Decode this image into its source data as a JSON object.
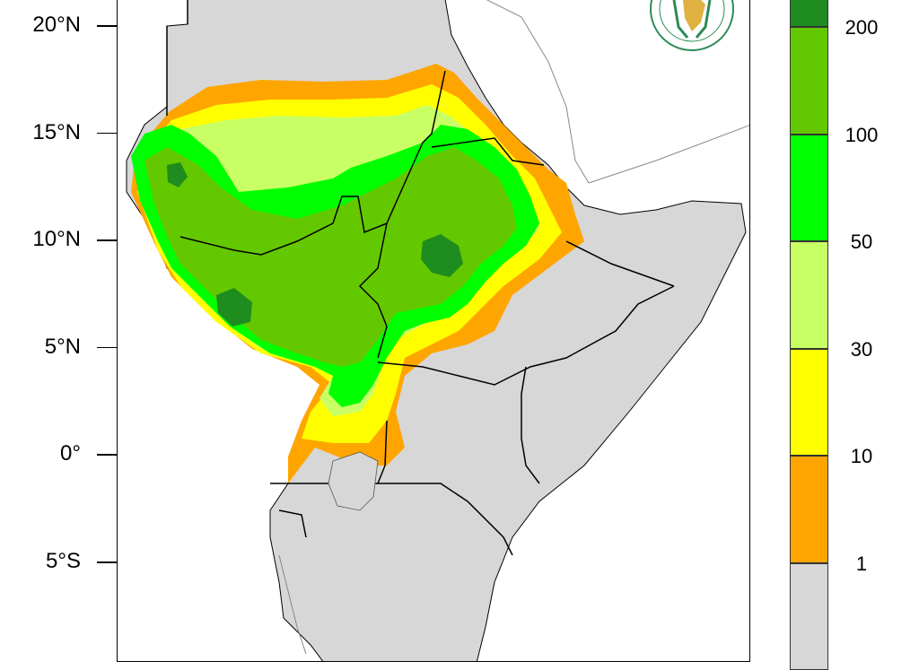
{
  "map": {
    "latitude_labels": [
      {
        "text": "20°N",
        "lat": 20
      },
      {
        "text": "15°N",
        "lat": 15
      },
      {
        "text": "10°N",
        "lat": 10
      },
      {
        "text": "5°N",
        "lat": 5
      },
      {
        "text": "0°",
        "lat": 0
      },
      {
        "text": "5°S",
        "lat": -5
      }
    ],
    "colors": {
      "land_dry": "#d7d7d7",
      "sea": "#ffffff",
      "border": "#000000"
    }
  },
  "legend": {
    "bins": [
      {
        "color": "#d7d7d7"
      },
      {
        "color": "#ffa500"
      },
      {
        "color": "#ffff00"
      },
      {
        "color": "#c8ff64"
      },
      {
        "color": "#00ff00"
      },
      {
        "color": "#64c800"
      },
      {
        "color": "#1e8c1e"
      }
    ],
    "thresholds": [
      "1",
      "10",
      "30",
      "50",
      "100",
      "200"
    ]
  },
  "logo": {
    "icon": "igad-logo"
  }
}
